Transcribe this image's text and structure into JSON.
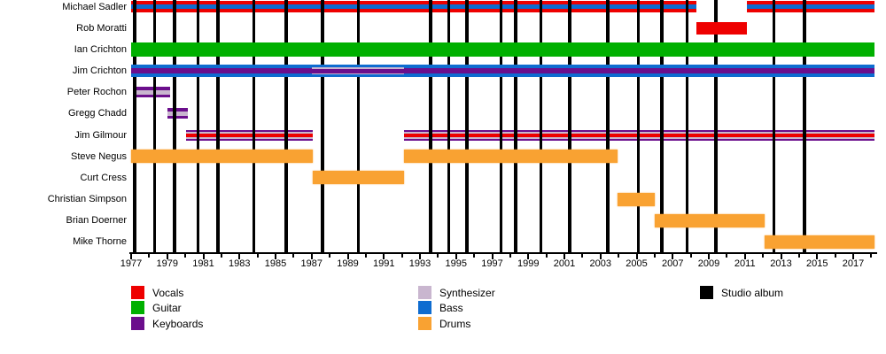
{
  "chart_data": {
    "type": "timeline",
    "description_of_marks": "band member instrument bars over studio-album vertical lines",
    "x_axis": {
      "min_year": 1977,
      "max_year": 2018.25,
      "labeled_years": [
        1977,
        1979,
        1981,
        1983,
        1985,
        1987,
        1989,
        1991,
        1993,
        1995,
        1997,
        1999,
        2001,
        2003,
        2005,
        2007,
        2009,
        2011,
        2013,
        2015,
        2017
      ],
      "minor_tick_step": 1
    },
    "rows": [
      {
        "name": "Michael Sadler",
        "lines_over_bar": true,
        "segments": [
          {
            "start": 1977.0,
            "end": 2008.3,
            "style": "vocals_bass"
          },
          {
            "start": 2011.1,
            "end": 2018.2,
            "style": "vocals_bass"
          }
        ]
      },
      {
        "name": "Rob Moratti",
        "lines_over_bar": false,
        "segments": [
          {
            "start": 2008.3,
            "end": 2011.1,
            "style": "vocals"
          }
        ]
      },
      {
        "name": "Ian Crichton",
        "lines_over_bar": false,
        "segments": [
          {
            "start": 1977.0,
            "end": 2018.2,
            "style": "guitar"
          }
        ]
      },
      {
        "name": "Jim Crichton",
        "lines_over_bar": false,
        "segments": [
          {
            "start": 1977.0,
            "end": 1987.0,
            "style": "bass_keys"
          },
          {
            "start": 1987.0,
            "end": 1992.1,
            "style": "bass_synth_keys"
          },
          {
            "start": 1992.1,
            "end": 2018.2,
            "style": "bass_keys"
          }
        ]
      },
      {
        "name": "Peter Rochon",
        "lines_over_bar": true,
        "segments": [
          {
            "start": 1977.1,
            "end": 1979.15,
            "style": "keys_synth"
          }
        ]
      },
      {
        "name": "Gregg Chadd",
        "lines_over_bar": true,
        "segments": [
          {
            "start": 1979.0,
            "end": 1980.15,
            "style": "keys_synth"
          }
        ]
      },
      {
        "name": "Jim Gilmour",
        "lines_over_bar": true,
        "segments": [
          {
            "start": 1980.05,
            "end": 1987.05,
            "style": "keys_synth_vocals"
          },
          {
            "start": 1992.1,
            "end": 2018.2,
            "style": "keys_synth_vocals"
          }
        ]
      },
      {
        "name": "Steve Negus",
        "lines_over_bar": false,
        "segments": [
          {
            "start": 1977.0,
            "end": 1987.05,
            "style": "drums"
          },
          {
            "start": 1992.1,
            "end": 2003.95,
            "style": "drums"
          }
        ]
      },
      {
        "name": "Curt Cress",
        "lines_over_bar": false,
        "segments": [
          {
            "start": 1987.05,
            "end": 1992.1,
            "style": "drums"
          }
        ]
      },
      {
        "name": "Christian Simpson",
        "lines_over_bar": false,
        "segments": [
          {
            "start": 2003.95,
            "end": 2006.0,
            "style": "drums"
          }
        ]
      },
      {
        "name": "Brian Doerner",
        "lines_over_bar": false,
        "segments": [
          {
            "start": 2006.0,
            "end": 2012.1,
            "style": "drums"
          }
        ]
      },
      {
        "name": "Mike Thorne",
        "lines_over_bar": false,
        "segments": [
          {
            "start": 2012.1,
            "end": 2018.2,
            "style": "drums"
          }
        ]
      }
    ],
    "bar_styles": {
      "vocals_bass": [
        [
          "vocals",
          4
        ],
        [
          "bass",
          5
        ],
        [
          "vocals",
          4
        ]
      ],
      "vocals": [
        [
          "vocals",
          14
        ]
      ],
      "guitar": [
        [
          "guitar",
          16
        ]
      ],
      "bass_keys": [
        [
          "bass",
          4
        ],
        [
          "keyboards",
          6
        ],
        [
          "bass",
          4
        ]
      ],
      "bass_synth_keys": [
        [
          "bass",
          3
        ],
        [
          "synthesizer",
          1.5
        ],
        [
          "keyboards",
          5
        ],
        [
          "synthesizer",
          1.5
        ],
        [
          "bass",
          3
        ]
      ],
      "keys_synth": [
        [
          "keyboards",
          3.5
        ],
        [
          "synthesizer",
          5
        ],
        [
          "keyboards",
          3.5
        ]
      ],
      "keys_synth_vocals": [
        [
          "keyboards",
          2
        ],
        [
          "synthesizer",
          2
        ],
        [
          "vocals",
          4
        ],
        [
          "synthesizer",
          2
        ],
        [
          "keyboards",
          2
        ]
      ],
      "drums": [
        [
          "drums",
          15
        ]
      ]
    },
    "album_line_years": [
      1977.2,
      1978.3,
      1979.4,
      1980.7,
      1981.8,
      1983.8,
      1985.6,
      1987.6,
      1989.6,
      1993.6,
      1994.6,
      1995.6,
      1997.5,
      1998.3,
      1999.7,
      2001.3,
      2003.4,
      2005.1,
      2006.4,
      2007.8,
      2009.4,
      2012.6,
      2014.3
    ],
    "legend": {
      "columns": [
        [
          {
            "label": "Vocals",
            "color": "vocals"
          },
          {
            "label": "Guitar",
            "color": "guitar"
          },
          {
            "label": "Keyboards",
            "color": "keyboards"
          }
        ],
        [
          {
            "label": "Synthesizer",
            "color": "synthesizer"
          },
          {
            "label": "Bass",
            "color": "bass"
          },
          {
            "label": "Drums",
            "color": "drums"
          }
        ],
        [
          {
            "label": "Studio album",
            "color": "album"
          }
        ]
      ]
    },
    "colors": {
      "vocals": "#EE0000",
      "guitar": "#00B000",
      "keyboards": "#6B0E8C",
      "synthesizer": "#C9B6CF",
      "bass": "#0E6CD0",
      "drums": "#F9A232",
      "album": "#000000",
      "background": "#FFFFFF",
      "text": "#000000"
    }
  }
}
